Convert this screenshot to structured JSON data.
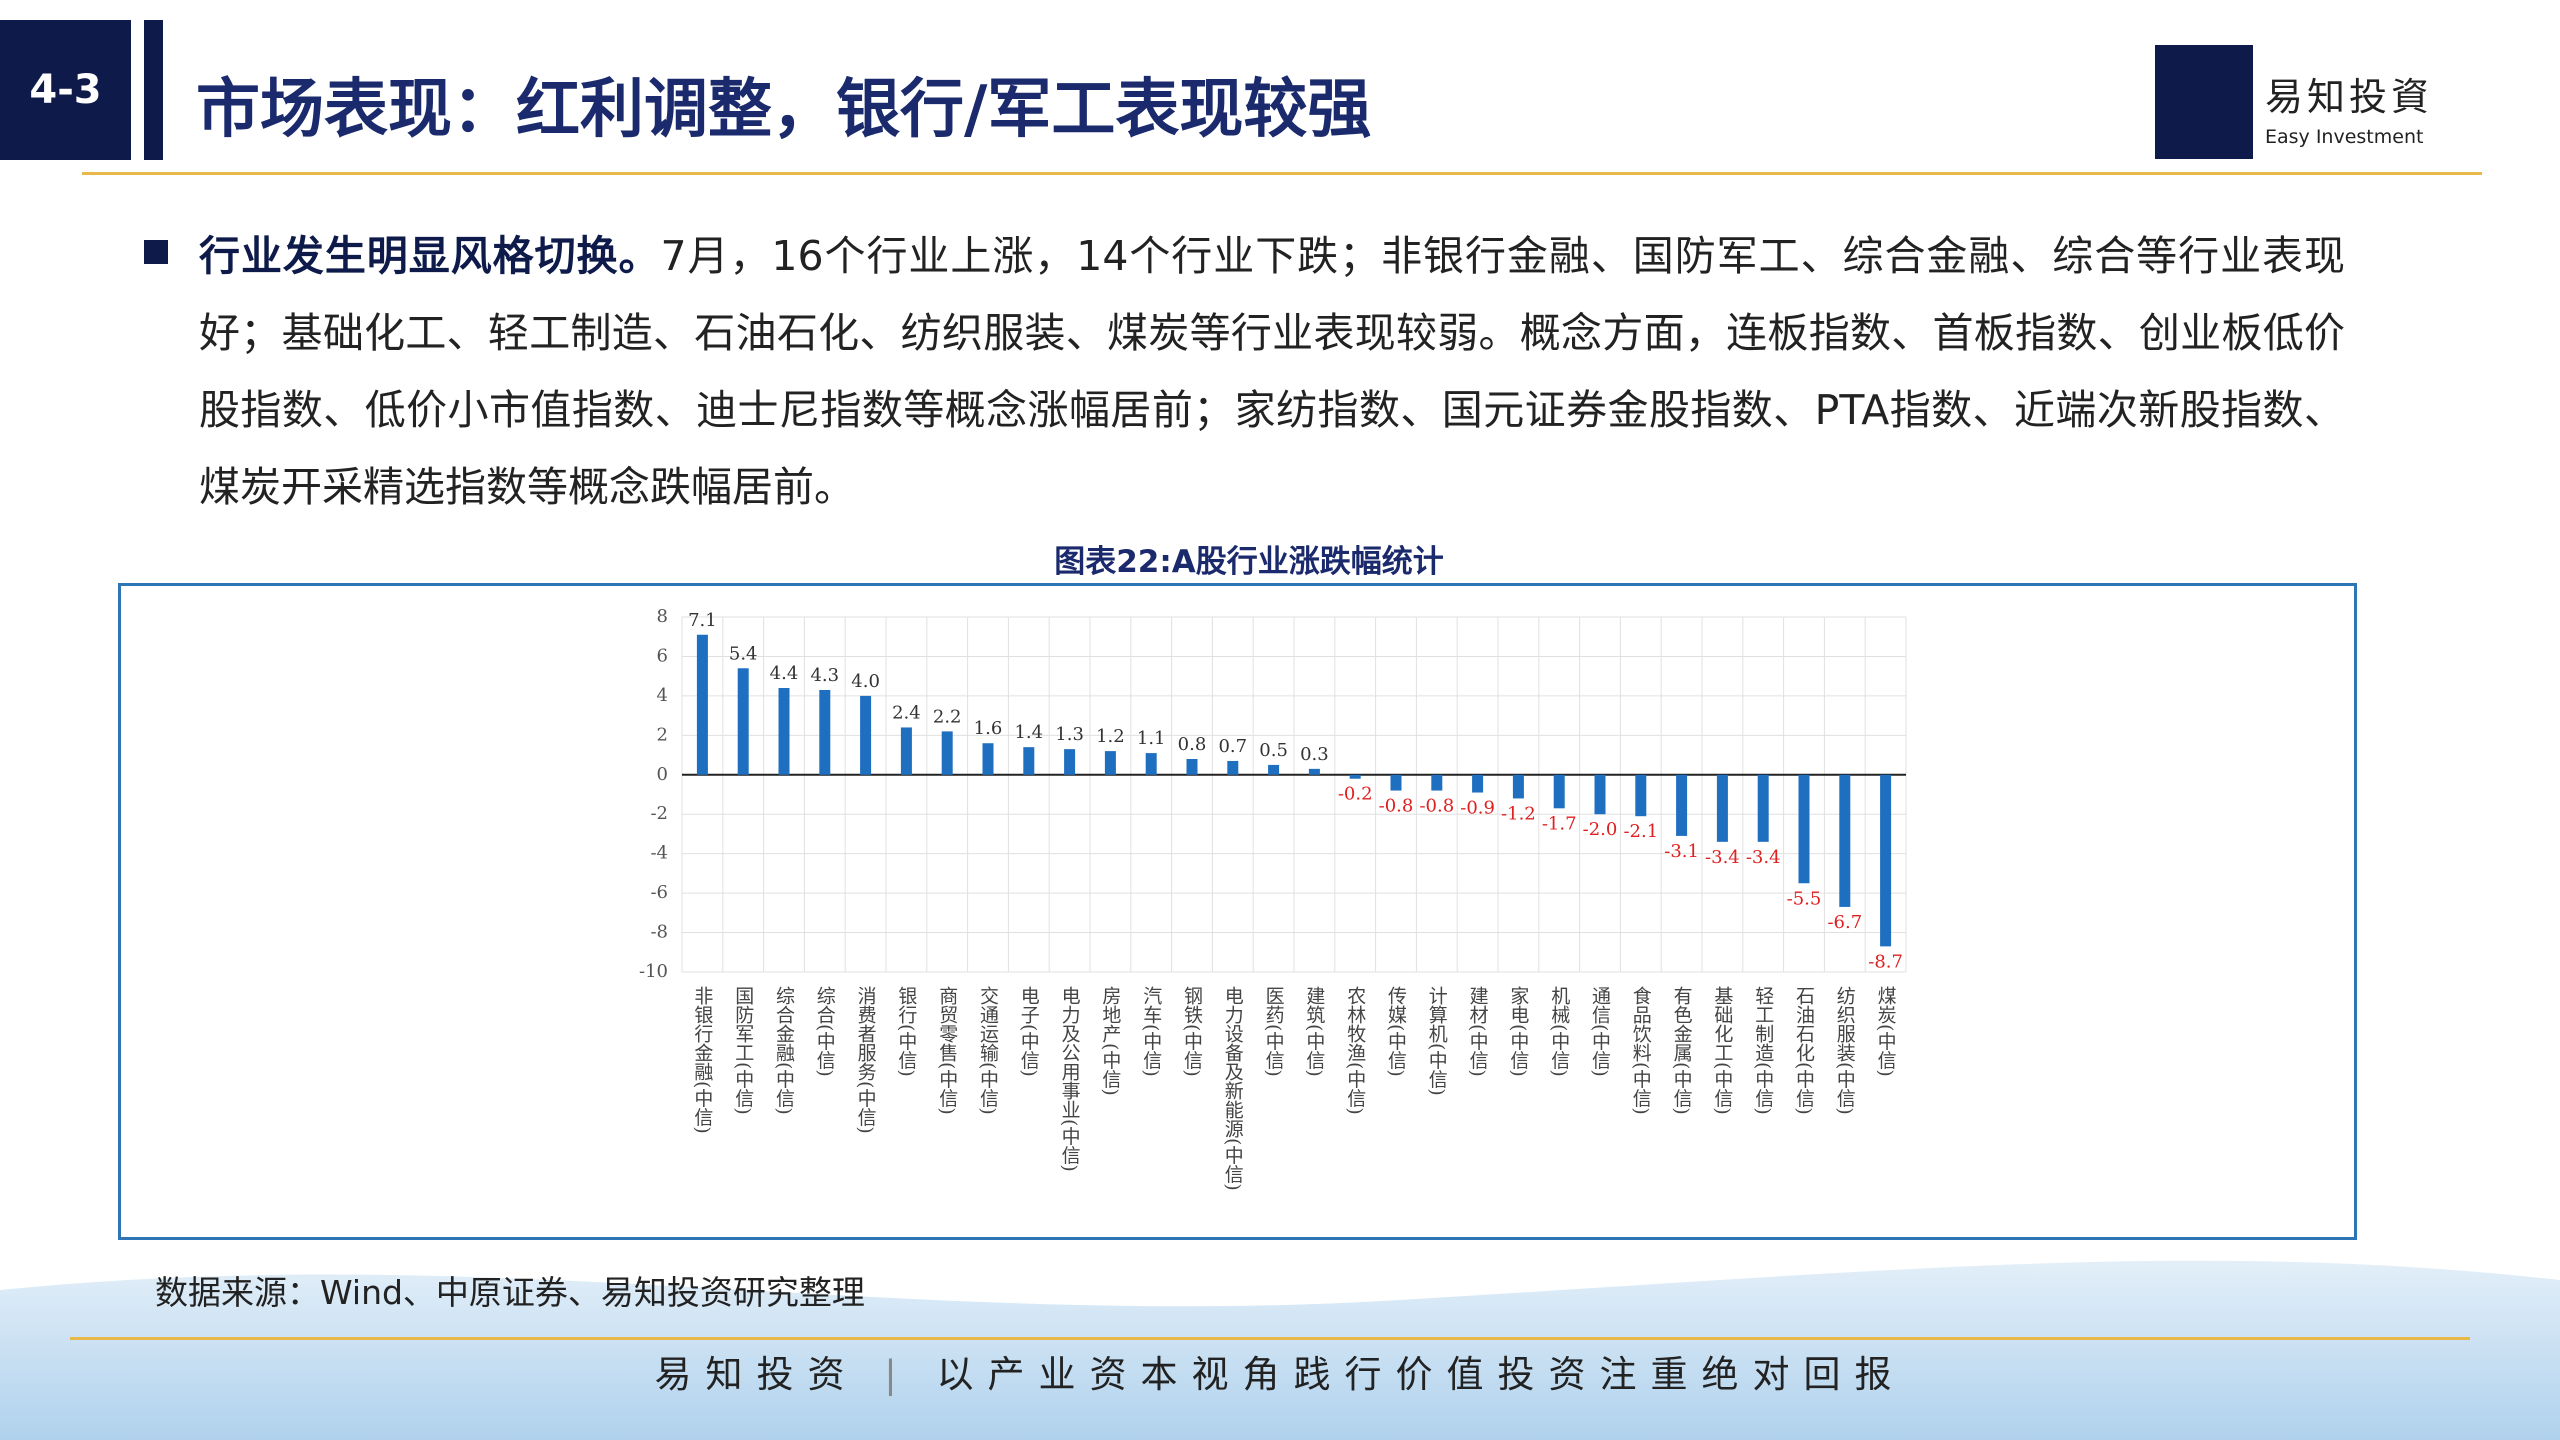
{
  "header": {
    "section": "4-3",
    "title": "市场表现：红利调整，银行/军工表现较强",
    "logo_cn": "易知投資",
    "logo_en": "Easy Investment"
  },
  "body": {
    "lead": "行业发生明显风格切换。",
    "text": "7月，16个行业上涨，14个行业下跌；非银行金融、国防军工、综合金融、综合等行业表现好；基础化工、轻工制造、石油石化、纺织服装、煤炭等行业表现较弱。概念方面，连板指数、首板指数、创业板低价股指数、低价小市值指数、迪士尼指数等概念涨幅居前；家纺指数、国元证券金股指数、PTA指数、近端次新股指数、煤炭开采精选指数等概念跌幅居前。"
  },
  "chart_data": {
    "type": "bar",
    "title": "图表22:A股行业涨跌幅统计",
    "color": "#1f6fc0",
    "positive_label_color": "#333333",
    "negative_label_color": "#e02020",
    "grid": true,
    "categories": [
      "非银行金融(中信)",
      "国防军工(中信)",
      "综合金融(中信)",
      "综合(中信)",
      "消费者服务(中信)",
      "银行(中信)",
      "商贸零售(中信)",
      "交通运输(中信)",
      "电子(中信)",
      "电力及公用事业(中信)",
      "房地产(中信)",
      "汽车(中信)",
      "钢铁(中信)",
      "电力设备及新能源(中信)",
      "医药(中信)",
      "建筑(中信)",
      "农林牧渔(中信)",
      "传媒(中信)",
      "计算机(中信)",
      "建材(中信)",
      "家电(中信)",
      "机械(中信)",
      "通信(中信)",
      "食品饮料(中信)",
      "有色金属(中信)",
      "基础化工(中信)",
      "轻工制造(中信)",
      "石油石化(中信)",
      "纺织服装(中信)",
      "煤炭(中信)"
    ],
    "values": [
      7.1,
      5.4,
      4.4,
      4.3,
      4.0,
      2.4,
      2.2,
      1.6,
      1.4,
      1.3,
      1.2,
      1.1,
      0.8,
      0.7,
      0.5,
      0.3,
      -0.2,
      -0.8,
      -0.8,
      -0.9,
      -1.2,
      -1.7,
      -2.0,
      -2.1,
      -3.1,
      -3.4,
      -3.4,
      -5.5,
      -6.7,
      -8.7
    ],
    "value_labels": [
      "7.1",
      "5.4",
      "4.4",
      "4.3",
      "4.0",
      "2.4",
      "2.2",
      "1.6",
      "1.4",
      "1.3",
      "1.2",
      "1.1",
      "0.8",
      "0.7",
      "0.5",
      "0.3",
      "-0.2",
      "-0.8",
      "-0.8",
      "-0.9",
      "-1.2",
      "-1.7",
      "-2.0",
      "-2.1",
      "-3.1",
      "-3.4",
      "-3.4",
      "-5.5",
      "-6.7",
      "-8.7"
    ],
    "ylim": [
      -10,
      8
    ],
    "yticks": [
      8,
      6,
      4,
      2,
      0,
      -2,
      -4,
      -6,
      -8,
      -10
    ]
  },
  "source": "数据来源：Wind、中原证券、易知投资研究整理",
  "footer": {
    "brand": "易知投资",
    "slogan": "以产业资本视角践行价值投资注重绝对回报"
  }
}
